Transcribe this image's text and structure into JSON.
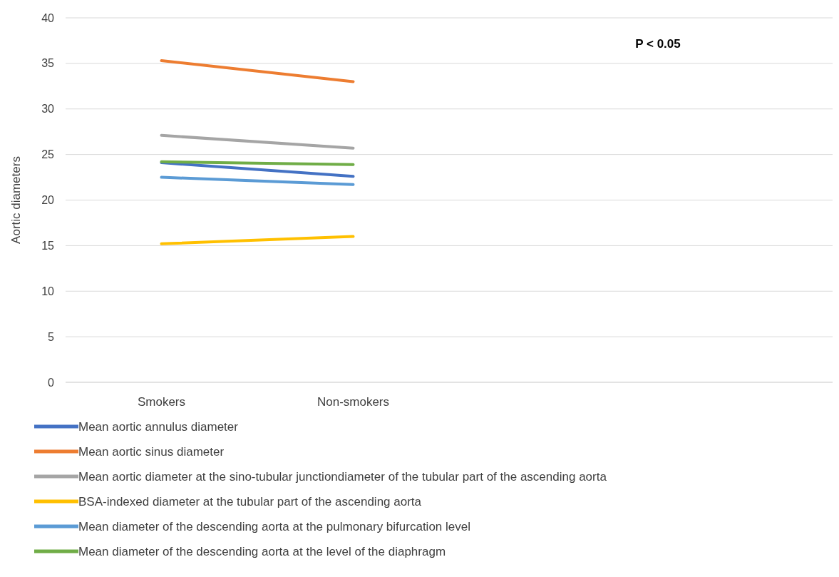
{
  "chart_data": {
    "type": "line",
    "ylabel": "Aortic diameters",
    "categories": [
      "Smokers",
      "Non-smokers",
      null,
      null
    ],
    "ylim": [
      0,
      40
    ],
    "yticks": [
      0,
      5,
      10,
      15,
      20,
      25,
      30,
      35,
      40
    ],
    "grid": "y",
    "legend": "bottom",
    "marker": "none",
    "line_style": "solid",
    "annotations": [
      "P < 0.05"
    ],
    "series": [
      {
        "name": "Mean aortic annulus diameter",
        "color": "#4472c4",
        "values": [
          24.1,
          22.6,
          null,
          null
        ]
      },
      {
        "name": "Mean aortic sinus diameter",
        "color": "#ed7d31",
        "values": [
          35.3,
          33.0,
          null,
          null
        ]
      },
      {
        "name": "Mean aortic diameter at the sino-tubular junctiondiameter of the tubular part of the ascending aorta",
        "color": "#a5a5a5",
        "values": [
          27.1,
          25.7,
          null,
          null
        ]
      },
      {
        "name": "BSA-indexed diameter at the tubular part of the ascending aorta",
        "color": "#ffc000",
        "values": [
          15.2,
          16.0,
          null,
          null
        ]
      },
      {
        "name": "Mean diameter of the descending aorta at the pulmonary bifurcation level",
        "color": "#5b9bd5",
        "values": [
          22.5,
          21.7,
          null,
          null
        ]
      },
      {
        "name": "Mean diameter of the descending aorta at the level of the diaphragm",
        "color": "#70ad47",
        "values": [
          24.2,
          23.9,
          null,
          null
        ]
      }
    ]
  }
}
